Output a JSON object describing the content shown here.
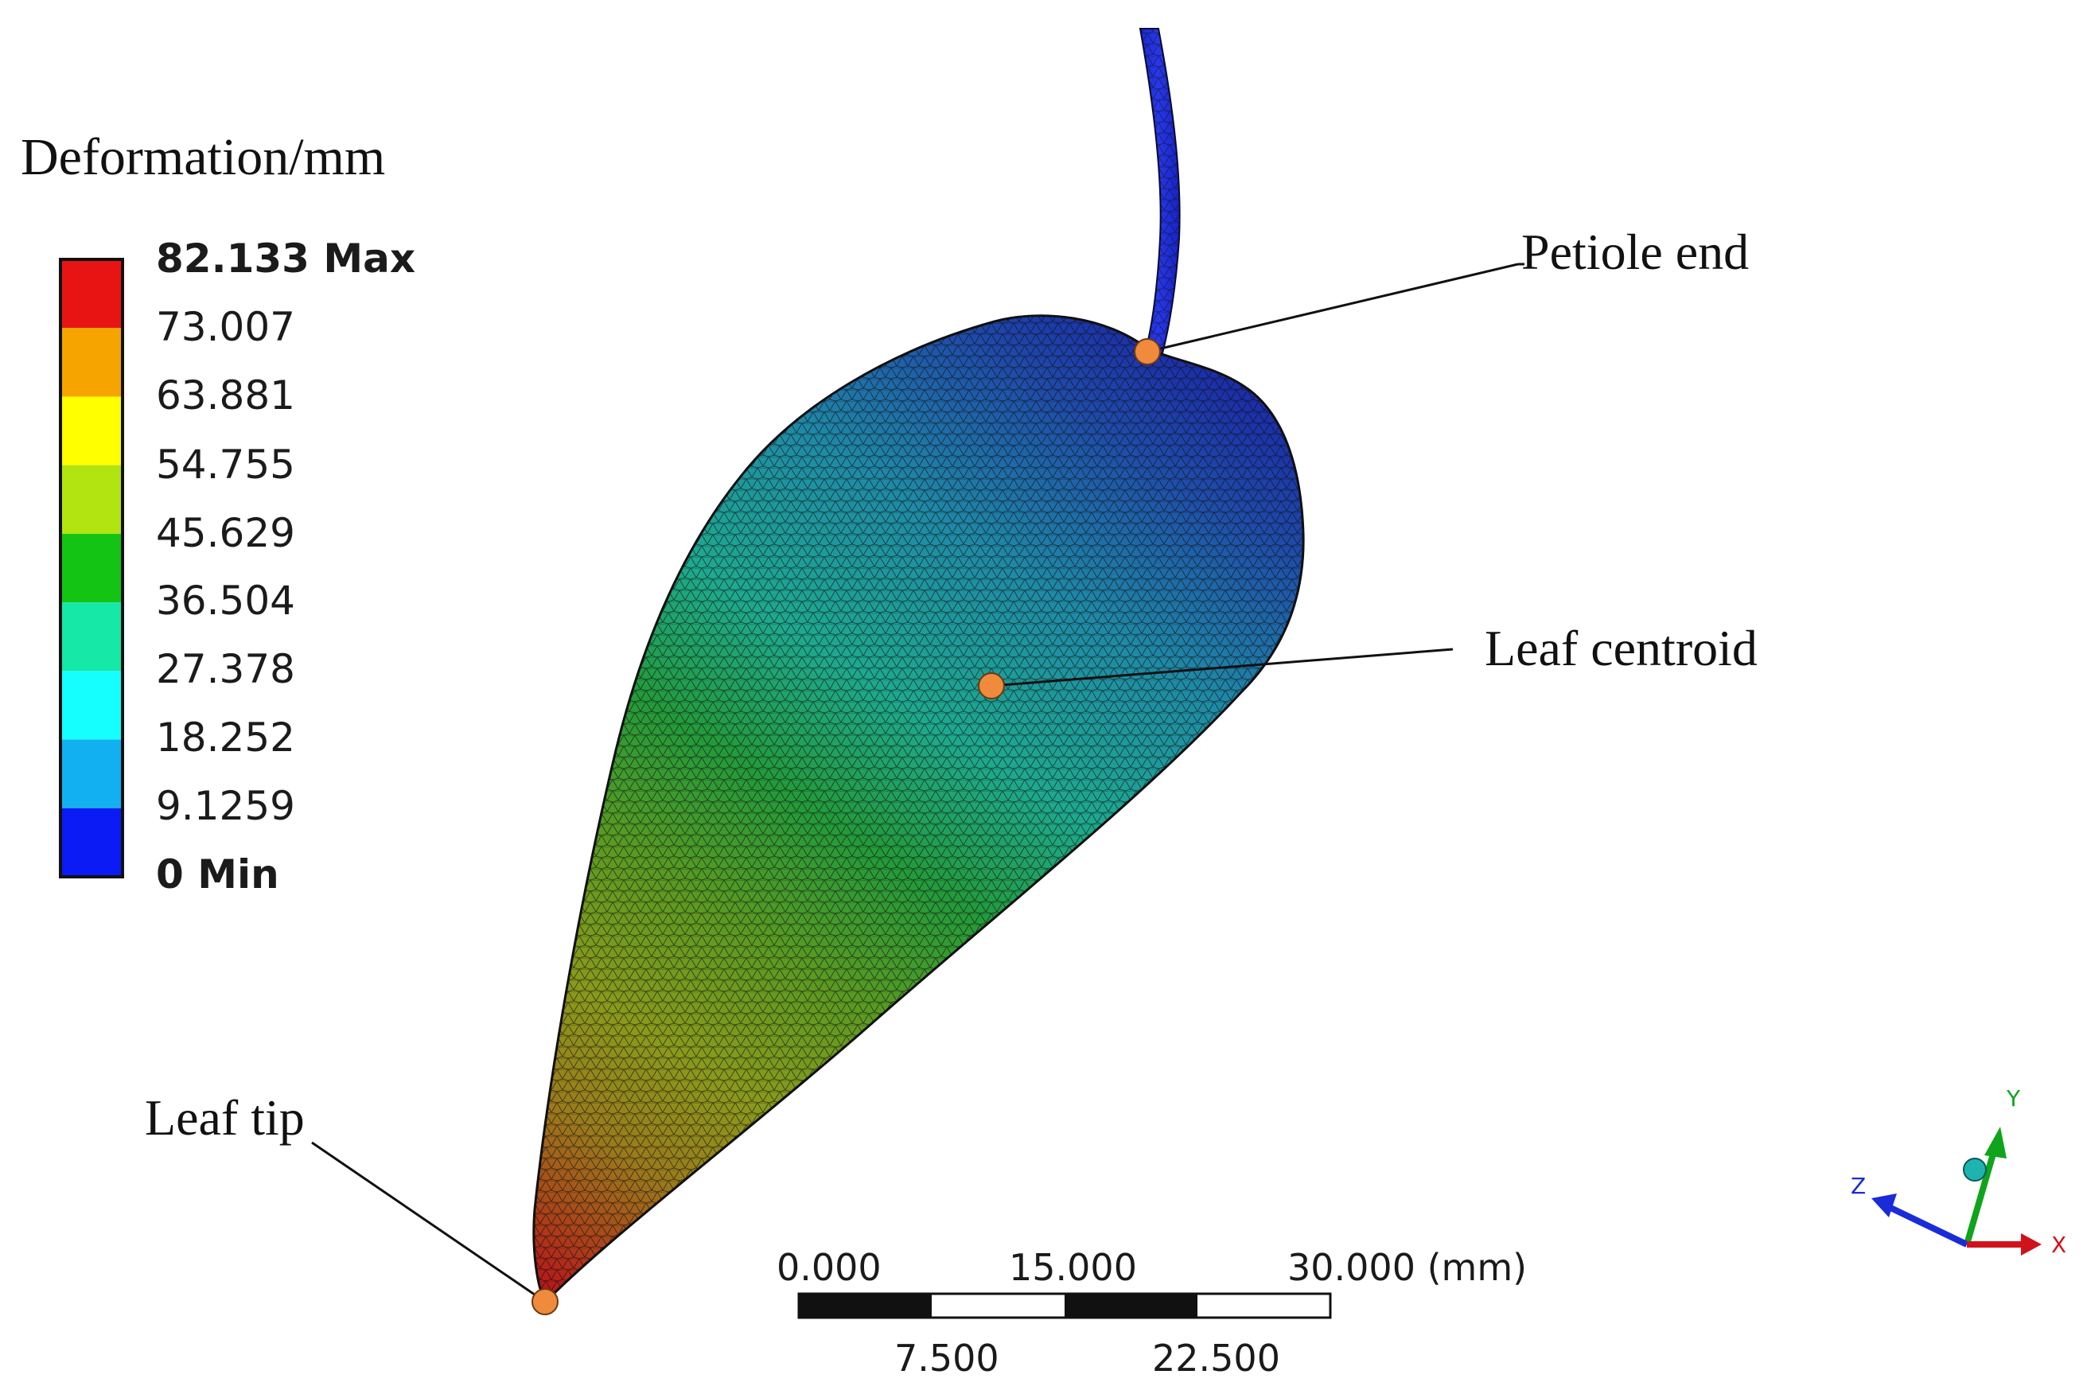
{
  "legend": {
    "title": "Deformation/mm",
    "labels": [
      "82.133 Max",
      "73.007",
      "63.881",
      "54.755",
      "45.629",
      "36.504",
      "27.378",
      "18.252",
      "9.1259",
      "0 Min"
    ],
    "colors": [
      "#e81414",
      "#f5a400",
      "#ffff00",
      "#b2e411",
      "#14c414",
      "#16e8a8",
      "#16ffff",
      "#12b0f0",
      "#0a1bf5"
    ]
  },
  "callouts": {
    "petiole_end": "Petiole end",
    "leaf_centroid": "Leaf centroid",
    "leaf_tip": "Leaf tip"
  },
  "scale_bar": {
    "top_labels": [
      "0.000",
      "15.000",
      "30.000 (mm)"
    ],
    "bottom_labels": [
      "7.500",
      "22.500"
    ]
  },
  "triad": {
    "x_label": "X",
    "y_label": "Y",
    "z_label": "Z",
    "x_color": "#d0121b",
    "y_color": "#0fa41b",
    "z_color": "#1a2bd8"
  },
  "marker_color": "#f08a3c"
}
